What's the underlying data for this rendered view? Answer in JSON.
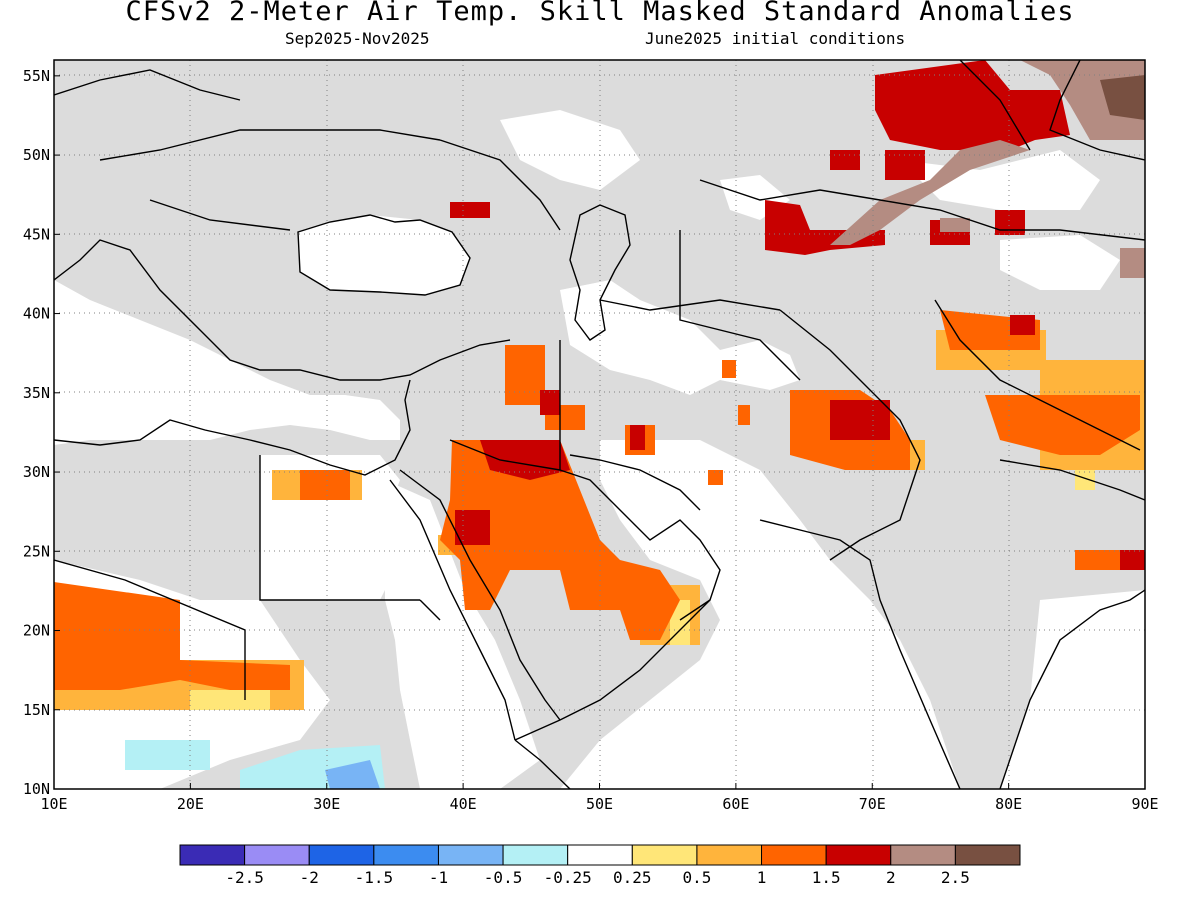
{
  "header": {
    "title": "CFSv2 2-Meter Air Temp. Skill Masked Standard Anomalies",
    "period": "Sep2025-Nov2025",
    "init": "June2025 initial conditions"
  },
  "axes": {
    "lon_ticks": [
      "10E",
      "20E",
      "30E",
      "40E",
      "50E",
      "60E",
      "70E",
      "80E",
      "90E"
    ],
    "lat_ticks": [
      "10N",
      "15N",
      "20N",
      "25N",
      "30N",
      "35N",
      "40N",
      "45N",
      "50N",
      "55N"
    ],
    "lon_range": [
      10,
      90
    ],
    "lat_range": [
      10,
      56
    ]
  },
  "colorbar": {
    "colors": [
      "#3a2bb5",
      "#9a8cf5",
      "#1e64e6",
      "#3c8cf0",
      "#78b4f5",
      "#b4f0f5",
      "#ffffff",
      "#ffe678",
      "#ffb43c",
      "#ff6400",
      "#c80000",
      "#b48c82",
      "#785041"
    ],
    "labels": [
      "-2.5",
      "-2",
      "-1.5",
      "-1",
      "-0.5",
      "-0.25",
      "0.25",
      "0.5",
      "1",
      "1.5",
      "2",
      "2.5"
    ]
  },
  "colors": {
    "masked_gray": "#dcdcdc",
    "coast": "#000000"
  }
}
